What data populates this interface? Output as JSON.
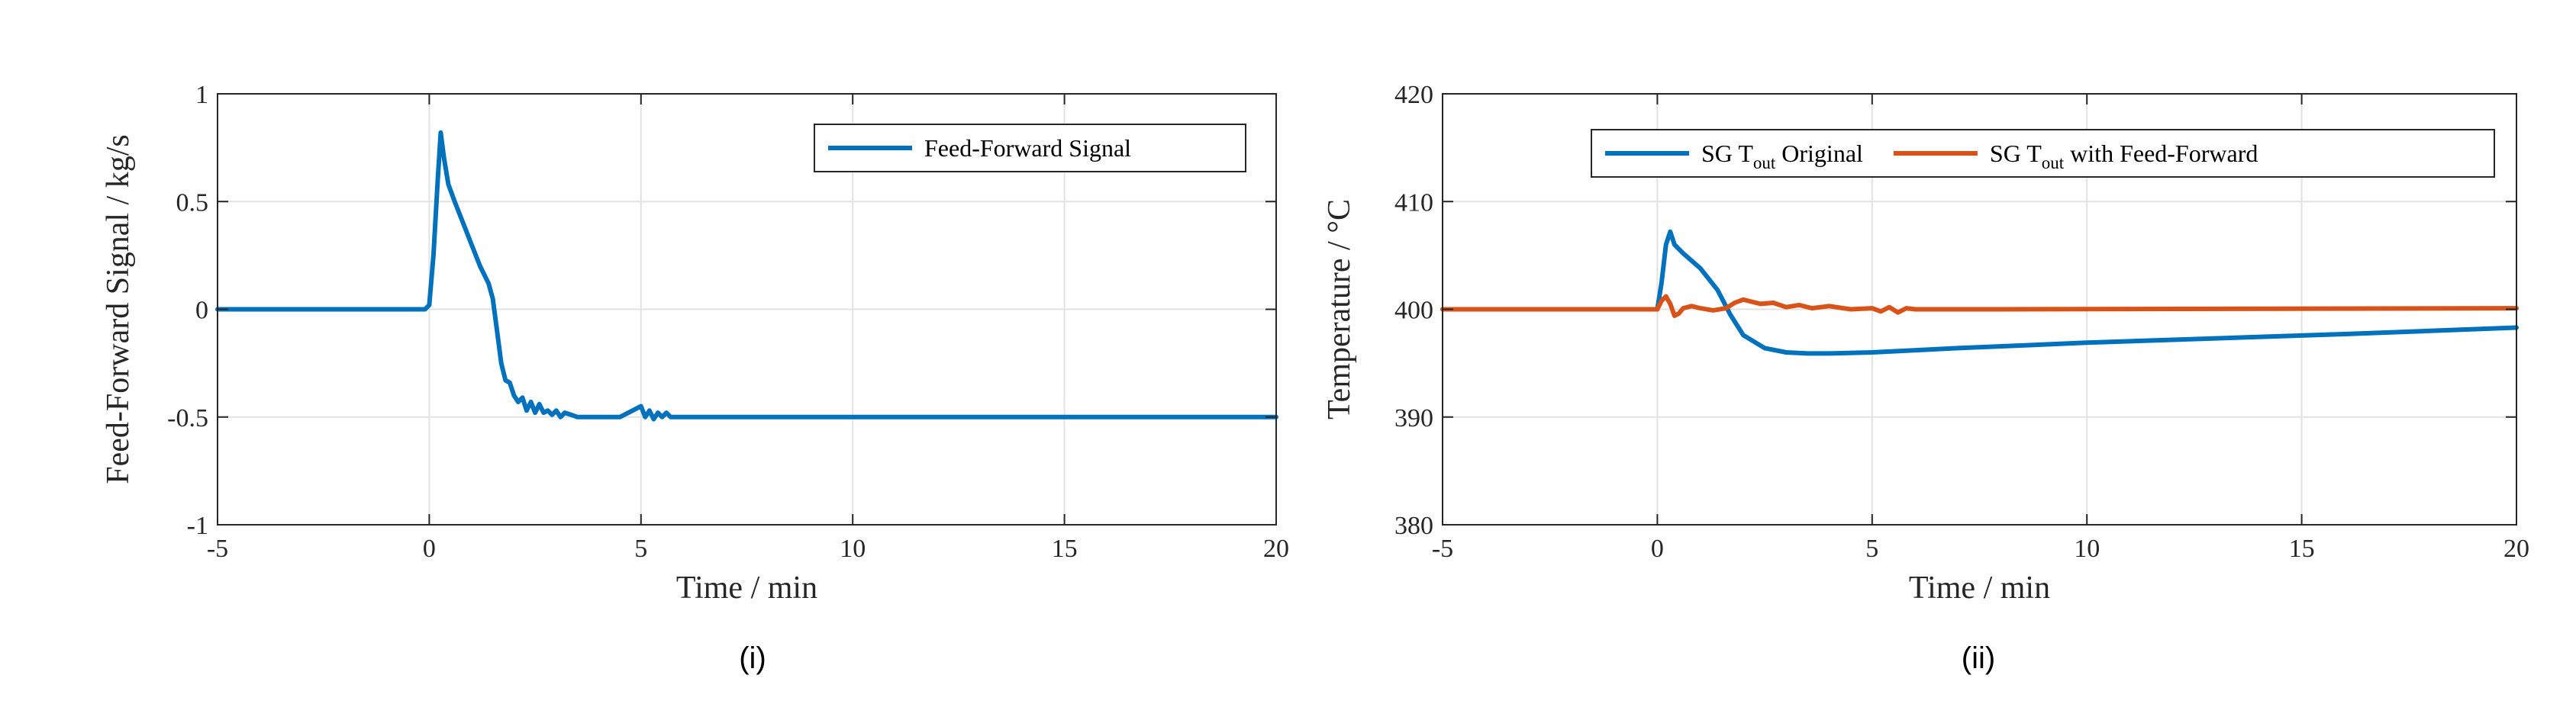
{
  "chart_data": [
    {
      "type": "line",
      "xlabel": "Time / min",
      "ylabel": "Feed-Forward Signal / kg/s",
      "xlim": [
        -5,
        20
      ],
      "ylim": [
        -1,
        1
      ],
      "xticks": [
        "-5",
        "0",
        "5",
        "10",
        "15",
        "20"
      ],
      "yticks": [
        "1",
        "0.5",
        "0",
        "-0.5",
        "-1"
      ],
      "grid": true,
      "legend_position": "top-right",
      "caption": "(i)",
      "series": [
        {
          "name": "Feed-Forward Signal",
          "color": "#0072BD",
          "x": [
            -5,
            -0.1,
            0.0,
            0.1,
            0.2,
            0.27,
            0.35,
            0.45,
            0.6,
            0.8,
            1.0,
            1.2,
            1.4,
            1.5,
            1.6,
            1.7,
            1.8,
            1.9,
            2.0,
            2.1,
            2.2,
            2.3,
            2.4,
            2.5,
            2.6,
            2.7,
            2.8,
            2.9,
            3.0,
            3.1,
            3.2,
            3.35,
            3.5,
            3.7,
            4.0,
            4.5,
            4.8,
            5.0,
            5.1,
            5.2,
            5.3,
            5.4,
            5.5,
            5.6,
            5.7,
            5.8,
            6.0,
            20
          ],
          "y": [
            0,
            0,
            0.02,
            0.25,
            0.6,
            0.82,
            0.7,
            0.58,
            0.5,
            0.4,
            0.3,
            0.2,
            0.12,
            0.05,
            -0.1,
            -0.25,
            -0.33,
            -0.34,
            -0.4,
            -0.43,
            -0.41,
            -0.47,
            -0.43,
            -0.48,
            -0.44,
            -0.48,
            -0.47,
            -0.49,
            -0.47,
            -0.5,
            -0.48,
            -0.49,
            -0.5,
            -0.5,
            -0.5,
            -0.5,
            -0.47,
            -0.45,
            -0.5,
            -0.47,
            -0.51,
            -0.48,
            -0.5,
            -0.48,
            -0.5,
            -0.5,
            -0.5,
            -0.5
          ]
        }
      ]
    },
    {
      "type": "line",
      "xlabel": "Time / min",
      "ylabel": "Temperature / °C",
      "xlim": [
        -5,
        20
      ],
      "ylim": [
        380,
        420
      ],
      "xticks": [
        "-5",
        "0",
        "5",
        "10",
        "15",
        "20"
      ],
      "yticks": [
        "420",
        "410",
        "400",
        "390",
        "380"
      ],
      "grid": true,
      "legend_position": "top-right",
      "caption": "(ii)",
      "series": [
        {
          "name": "SG T_out Original",
          "legend": {
            "pre": "SG T",
            "sub": "out",
            "post": " Original"
          },
          "color": "#0072BD",
          "x": [
            -5,
            0,
            0.1,
            0.2,
            0.3,
            0.4,
            0.6,
            1.0,
            1.4,
            1.7,
            2.0,
            2.5,
            3.0,
            3.5,
            4.0,
            5.0,
            7.0,
            10.0,
            13.0,
            16.0,
            18.0,
            20.0
          ],
          "y": [
            400,
            400,
            402.5,
            406,
            407.2,
            406,
            405.2,
            403.8,
            401.8,
            399.5,
            397.6,
            396.4,
            396,
            395.9,
            395.9,
            396,
            396.4,
            396.9,
            397.3,
            397.7,
            398,
            398.3
          ]
        },
        {
          "name": "SG T_out with Feed-Forward",
          "legend": {
            "pre": "SG T",
            "sub": "out",
            "post": " with Feed-Forward"
          },
          "color": "#D95319",
          "x": [
            -5,
            0,
            0.1,
            0.2,
            0.3,
            0.4,
            0.5,
            0.6,
            0.8,
            1.0,
            1.3,
            1.6,
            1.8,
            2.0,
            2.2,
            2.4,
            2.7,
            3.0,
            3.3,
            3.6,
            4.0,
            4.5,
            5.0,
            5.2,
            5.4,
            5.6,
            5.8,
            6.0,
            8.0,
            20.0
          ],
          "y": [
            400,
            400,
            400.8,
            401.2,
            400.5,
            399.4,
            399.6,
            400.1,
            400.3,
            400.1,
            399.9,
            400.1,
            400.6,
            400.9,
            400.7,
            400.5,
            400.6,
            400.2,
            400.4,
            400.1,
            400.3,
            400.0,
            400.1,
            399.8,
            400.2,
            399.7,
            400.1,
            400.0,
            400.0,
            400.1
          ]
        }
      ]
    }
  ]
}
